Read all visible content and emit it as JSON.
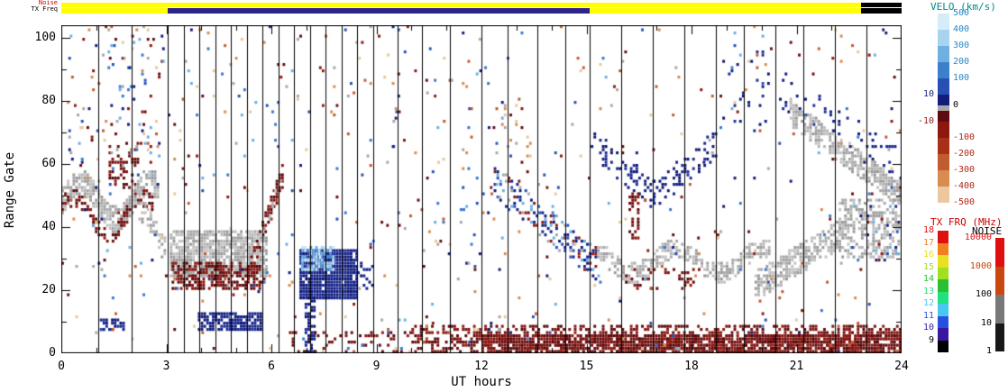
{
  "top_strips": {
    "noise_label": "Noise",
    "noise_label_color": "#cc0000",
    "txfreq_label": "TX Freq",
    "txfreq_label_color": "#000000",
    "noise_segments": [
      {
        "h0": 0,
        "h1": 22.85,
        "color": "#ffff00"
      },
      {
        "h0": 22.85,
        "h1": 24,
        "color": "#000000"
      }
    ],
    "txfreq_segments": [
      {
        "h0": 0,
        "h1": 3.05,
        "color": "#ffff00"
      },
      {
        "h0": 3.05,
        "h1": 15.1,
        "color": "#2c2488"
      },
      {
        "h0": 15.1,
        "h1": 22.85,
        "color": "#ffff00"
      },
      {
        "h0": 22.85,
        "h1": 24,
        "color": "#000000"
      }
    ]
  },
  "colorbars": {
    "velo": {
      "title": "VELO (km/s)",
      "title_color": "#008888",
      "segments": [
        {
          "color": "#d6ecf8",
          "h": 18,
          "label": "500",
          "side": "r",
          "label_color": "#2888c8"
        },
        {
          "color": "#a8d4f0",
          "h": 18,
          "label": "400",
          "side": "r",
          "label_color": "#2888c8"
        },
        {
          "color": "#70b0e0",
          "h": 18,
          "label": "300",
          "side": "r",
          "label_color": "#2888c8"
        },
        {
          "color": "#3c80cc",
          "h": 18,
          "label": "200",
          "side": "r",
          "label_color": "#2888c8"
        },
        {
          "color": "#2850b4",
          "h": 18,
          "label": "100",
          "side": "r",
          "label_color": "#2888c8"
        },
        {
          "color": "#141c7c",
          "h": 12,
          "label": "10",
          "side": "l",
          "label_color": "#141c7c"
        },
        {
          "color": "#a8a8a8",
          "h": 6,
          "label": "0",
          "side": "r",
          "label_color": "#000000"
        },
        {
          "color": "#5c0c10",
          "h": 12,
          "label": "",
          "side": "r",
          "label_color": ""
        },
        {
          "color": "#8c1810",
          "h": 18,
          "label": "-10",
          "side": "l",
          "label_color": "#8c1810"
        },
        {
          "color": "#a83018",
          "h": 18,
          "label": "-100",
          "side": "r",
          "label_color": "#b02818"
        },
        {
          "color": "#c05c30",
          "h": 18,
          "label": "-200",
          "side": "r",
          "label_color": "#b02818"
        },
        {
          "color": "#d88c50",
          "h": 18,
          "label": "-300",
          "side": "r",
          "label_color": "#b02818"
        },
        {
          "color": "#ecc8a0",
          "h": 18,
          "label": "-400",
          "side": "r",
          "label_color": "#b02818"
        },
        {
          "color": "",
          "h": 0,
          "label": "-500",
          "side": "r",
          "label_color": "#b02818"
        }
      ]
    },
    "txfrq": {
      "title": "TX FRQ (MHz)",
      "title_color": "#cc0000",
      "segments": [
        {
          "color": "#e01010",
          "h": 13.5,
          "label": "18"
        },
        {
          "color": "#f08020",
          "h": 13.5,
          "label": "17"
        },
        {
          "color": "#e8e020",
          "h": 13.5,
          "label": "16"
        },
        {
          "color": "#a0e020",
          "h": 13.5,
          "label": "15"
        },
        {
          "color": "#28c030",
          "h": 13.5,
          "label": "14"
        },
        {
          "color": "#20e080",
          "h": 13.5,
          "label": "13"
        },
        {
          "color": "#48c8f0",
          "h": 13.5,
          "label": "12"
        },
        {
          "color": "#2850e0",
          "h": 13.5,
          "label": "11"
        },
        {
          "color": "#3818a0",
          "h": 13.5,
          "label": "10"
        },
        {
          "color": "#000000",
          "h": 13.5,
          "label": "9"
        }
      ]
    },
    "noise": {
      "title": "NOISE",
      "title_color": "#000000",
      "segments": [
        {
          "color": "#e01010",
          "h": 31.5
        },
        {
          "color": "#c84810",
          "h": 31.5
        },
        {
          "color": "#787878",
          "h": 31.5
        },
        {
          "color": "#181818",
          "h": 31.5
        }
      ],
      "labels": [
        {
          "text": "10000",
          "color": "#e01010"
        },
        {
          "text": "1000",
          "color": "#c04010"
        },
        {
          "text": "100",
          "color": "#000000"
        },
        {
          "text": "10",
          "color": "#000000"
        },
        {
          "text": "1",
          "color": "#000000"
        }
      ]
    }
  },
  "chart_data": {
    "type": "heatmap",
    "xlabel": "UT hours",
    "ylabel": "Range Gate",
    "x_range": [
      0,
      24
    ],
    "y_range": [
      0,
      104
    ],
    "x_ticks": [
      0,
      3,
      6,
      9,
      12,
      15,
      18,
      21,
      24
    ],
    "x_minor_step": 1,
    "y_ticks": [
      0,
      20,
      40,
      60,
      80,
      100
    ],
    "y_minor_step": 10,
    "palettes": {
      "gs": [
        "#a8a8a8",
        "#b6b6b6",
        "#9a9a9a",
        "#c2c2c2"
      ],
      "dkred": [
        "#6a0c0c",
        "#7c1410",
        "#8c1810",
        "#58080c"
      ],
      "navy": [
        "#101c80",
        "#16248c",
        "#0c1670",
        "#1c2c94"
      ],
      "ltblue": [
        "#68b0e2",
        "#9ed2f2",
        "#4492da",
        "#c6e6f8"
      ],
      "mixpos": [
        "#101c80",
        "#2850b8",
        "#68b0e2",
        "#8c1810",
        "#a8a8a8",
        "#16248c"
      ],
      "mix": [
        "#101c80",
        "#2850b8",
        "#68b0e2",
        "#8c1810",
        "#c05c30",
        "#d88c50",
        "#a8a8a8",
        "#e8c89c",
        "#6a0c0c",
        "#3878d0"
      ]
    },
    "vertical_lines": [
      1.05,
      2.0,
      3.05,
      3.5,
      3.95,
      4.4,
      4.85,
      5.3,
      5.75,
      6.2,
      6.65,
      7.1,
      7.55,
      8.0,
      8.45,
      8.9,
      9.6,
      10.3,
      11.1,
      12.0,
      12.75,
      13.6,
      14.4,
      15.1,
      16.0,
      16.9,
      17.8,
      18.7,
      19.5,
      20.4,
      21.2,
      22.1,
      23.0
    ],
    "features": [
      {
        "name": "gs-band-early",
        "shape": "wavy",
        "h": [
          0,
          2.75
        ],
        "g": [
          40,
          56
        ],
        "amp": 6,
        "freq": 1.0,
        "phase": 0,
        "thick": 8,
        "palette": "gs",
        "density": 0.72
      },
      {
        "name": "neg-band-early",
        "shape": "wavy",
        "h": [
          0,
          2.6
        ],
        "g": [
          36,
          50
        ],
        "amp": 6,
        "freq": 1.0,
        "phase": 0.6,
        "thick": 5,
        "palette": "dkred",
        "density": 0.4
      },
      {
        "name": "neg-patch-2h",
        "shape": "rect",
        "h": [
          1.35,
          2.2
        ],
        "g": [
          52,
          66
        ],
        "palette": "dkred",
        "density": 0.3
      },
      {
        "name": "high-scatter-early",
        "shape": "rect",
        "h": [
          0.2,
          3.0
        ],
        "g": [
          58,
          103
        ],
        "palette": "mix",
        "density": 0.05
      },
      {
        "name": "gs-tail-3h",
        "shape": "diag",
        "h": [
          2.2,
          2.95
        ],
        "gs": 46,
        "ge": 32,
        "thick": 8,
        "palette": "gs",
        "density": 0.45
      },
      {
        "name": "pos-low-1h",
        "shape": "rect",
        "h": [
          1.1,
          1.9
        ],
        "g": [
          7,
          10
        ],
        "palette": "navy",
        "density": 0.5
      },
      {
        "name": "gs-blob-4h",
        "shape": "rect",
        "h": [
          3.1,
          5.9
        ],
        "g": [
          24,
          38
        ],
        "palette": "gs",
        "density": 0.8
      },
      {
        "name": "neg-band-4h",
        "shape": "rect",
        "h": [
          3.15,
          5.65
        ],
        "g": [
          20,
          28
        ],
        "palette": "dkred",
        "density": 0.66
      },
      {
        "name": "neg-rise-6h",
        "shape": "diag",
        "h": [
          5.4,
          6.35
        ],
        "gs": 28,
        "ge": 58,
        "thick": 7,
        "palette": "dkred",
        "density": 0.55
      },
      {
        "name": "gs-rise-6h",
        "shape": "diag",
        "h": [
          5.6,
          6.3
        ],
        "gs": 34,
        "ge": 56,
        "thick": 4,
        "palette": "gs",
        "density": 0.3
      },
      {
        "name": "pos-band-low-5h",
        "shape": "rect",
        "h": [
          3.9,
          5.7
        ],
        "g": [
          7,
          12
        ],
        "palette": "navy",
        "density": 0.82
      },
      {
        "name": "pos-blob-7h",
        "shape": "rect",
        "h": [
          6.8,
          8.45
        ],
        "g": [
          17,
          32
        ],
        "palette": "navy",
        "density": 0.93
      },
      {
        "name": "pos-blob-light-top",
        "shape": "rect",
        "h": [
          6.85,
          7.75
        ],
        "g": [
          26,
          33
        ],
        "palette": "ltblue",
        "density": 0.75
      },
      {
        "name": "pos-streak-7h",
        "shape": "rect",
        "h": [
          6.95,
          7.25
        ],
        "g": [
          0,
          17
        ],
        "palette": "navy",
        "density": 0.65
      },
      {
        "name": "pos-blob-tail",
        "shape": "rect",
        "h": [
          8.45,
          8.9
        ],
        "g": [
          20,
          28
        ],
        "palette": "navy",
        "density": 0.3
      },
      {
        "name": "diag-band-13h",
        "shape": "diag",
        "h": [
          12.35,
          15.35
        ],
        "gs": 54,
        "ge": 27,
        "thick": 10,
        "palette": "mixpos",
        "density": 0.38
      },
      {
        "name": "high-scatter-13h",
        "shape": "rect",
        "h": [
          12.4,
          13.4
        ],
        "g": [
          55,
          80
        ],
        "palette": "mix",
        "density": 0.07
      },
      {
        "name": "navy-v-left",
        "shape": "diag",
        "h": [
          15.2,
          16.9
        ],
        "gs": 66,
        "ge": 50,
        "thick": 9,
        "palette": "navy",
        "density": 0.25
      },
      {
        "name": "navy-v-right",
        "shape": "diag",
        "h": [
          16.9,
          18.7
        ],
        "gs": 50,
        "ge": 66,
        "thick": 9,
        "palette": "navy",
        "density": 0.25
      },
      {
        "name": "gs-band-17h",
        "shape": "wavy",
        "h": [
          15.3,
          20.2
        ],
        "g": [
          24,
          34
        ],
        "amp": 4,
        "freq": 0.8,
        "phase": 1.5,
        "thick": 6,
        "palette": "gs",
        "density": 0.6
      },
      {
        "name": "neg-band-17h",
        "shape": "rect",
        "h": [
          16.1,
          18.2
        ],
        "g": [
          20,
          26
        ],
        "palette": "dkred",
        "density": 0.25
      },
      {
        "name": "neg-col-16h",
        "shape": "rect",
        "h": [
          16.2,
          16.5
        ],
        "g": [
          36,
          50
        ],
        "palette": "dkred",
        "density": 0.3
      },
      {
        "name": "gs-rise-21h",
        "shape": "diag",
        "h": [
          19.8,
          22.3
        ],
        "gs": 21,
        "ge": 38,
        "thick": 9,
        "palette": "gs",
        "density": 0.6
      },
      {
        "name": "gs-mass-23h",
        "shape": "rect",
        "h": [
          22.2,
          23.9
        ],
        "g": [
          30,
          48
        ],
        "palette": "gs",
        "density": 0.5
      },
      {
        "name": "gs-diag-upper-22h",
        "shape": "diag",
        "h": [
          20.8,
          23.95
        ],
        "gs": 76,
        "ge": 50,
        "thick": 8,
        "palette": "gs",
        "density": 0.68
      },
      {
        "name": "navy-upper-22h",
        "shape": "diag",
        "h": [
          20.5,
          23.95
        ],
        "gs": 84,
        "ge": 58,
        "thick": 12,
        "palette": "navy",
        "density": 0.1
      },
      {
        "name": "navy-high-19h",
        "shape": "rect",
        "h": [
          18.8,
          20.2
        ],
        "g": [
          70,
          95
        ],
        "palette": "navy",
        "density": 0.05
      },
      {
        "name": "mixed-23h",
        "shape": "rect",
        "h": [
          23.0,
          23.95
        ],
        "g": [
          28,
          46
        ],
        "palette": "mixpos",
        "density": 0.12
      },
      {
        "name": "bottom-neg-sparse",
        "shape": "rect",
        "h": [
          6.5,
          10
        ],
        "g": [
          0,
          6
        ],
        "palette": "dkred",
        "density": 0.18
      },
      {
        "name": "bottom-neg",
        "shape": "rect",
        "h": [
          10,
          24
        ],
        "g": [
          0,
          8
        ],
        "palette": "dkred",
        "density": 0.42
      },
      {
        "name": "bottom-neg-dense",
        "shape": "rect",
        "h": [
          12,
          24
        ],
        "g": [
          0,
          5
        ],
        "palette": "dkred",
        "density": 0.75
      },
      {
        "name": "mid-scatter",
        "shape": "rect",
        "h": [
          9.3,
          12.3
        ],
        "g": [
          0,
          103
        ],
        "palette": "mix",
        "density": 0.012
      },
      {
        "name": "ambient-noise",
        "shape": "rect",
        "h": [
          0,
          24
        ],
        "g": [
          0,
          103
        ],
        "palette": "mix",
        "density": 0.016
      }
    ]
  }
}
